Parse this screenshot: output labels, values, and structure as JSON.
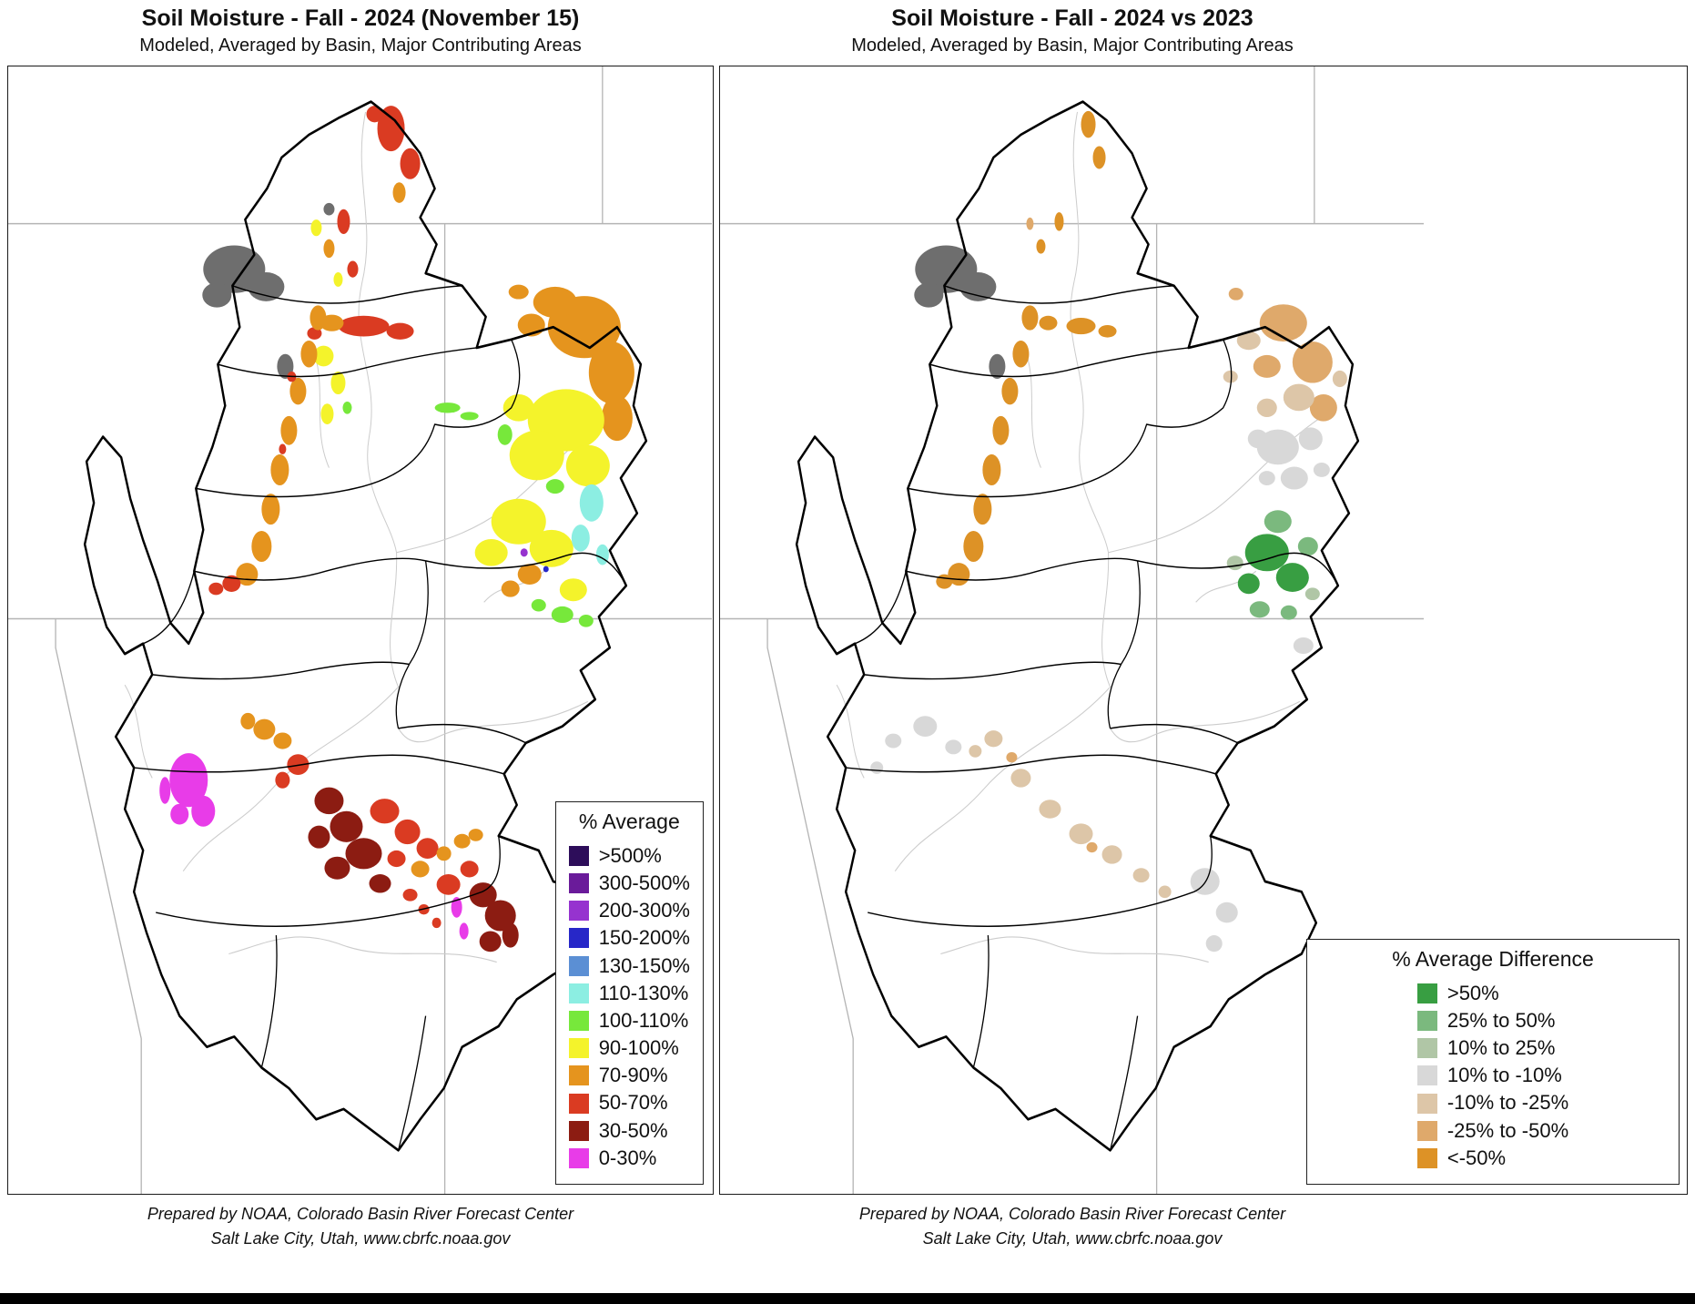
{
  "page": {
    "background_color": "#ffffff",
    "bottom_bar_color": "#000000"
  },
  "map": {
    "boundary_color": "#000000",
    "state_line_color": "#b4b4b4",
    "river_color": "#cccccc",
    "nodata_color": "#6e6e6e"
  },
  "left": {
    "title": "Soil Moisture - Fall - 2024 (November 15)",
    "subtitle": "Modeled, Averaged by Basin, Major Contributing Areas",
    "legend_title": "% Average",
    "legend": [
      {
        "label": ">500%",
        "color": "#2d0d5a"
      },
      {
        "label": "300-500%",
        "color": "#6a1b9a"
      },
      {
        "label": "200-300%",
        "color": "#9633cf"
      },
      {
        "label": "150-200%",
        "color": "#2727c8"
      },
      {
        "label": "130-150%",
        "color": "#5b8fd4"
      },
      {
        "label": "110-130%",
        "color": "#8ceee2"
      },
      {
        "label": "100-110%",
        "color": "#77e83b"
      },
      {
        "label": "90-100%",
        "color": "#f4f32b"
      },
      {
        "label": "70-90%",
        "color": "#e5941e"
      },
      {
        "label": "50-70%",
        "color": "#da3b22"
      },
      {
        "label": "30-50%",
        "color": "#8c1c12"
      },
      {
        "label": "0-30%",
        "color": "#e83ce8"
      }
    ],
    "footer1": "Prepared by NOAA, Colorado Basin River Forecast Center",
    "footer2": "Salt Lake City, Utah, www.cbrfc.noaa.gov"
  },
  "right": {
    "title": "Soil Moisture - Fall - 2024 vs 2023",
    "subtitle": "Modeled, Averaged by Basin, Major Contributing Areas",
    "legend_title": "% Average Difference",
    "legend": [
      {
        "label": ">50%",
        "color": "#389e42"
      },
      {
        "label": "25% to 50%",
        "color": "#7bb97e"
      },
      {
        "label": "10% to 25%",
        "color": "#b0c6a6"
      },
      {
        "label": "10% to -10%",
        "color": "#d8d8d8"
      },
      {
        "label": "-10% to -25%",
        "color": "#ddc6a8"
      },
      {
        "label": "-25% to -50%",
        "color": "#dfa96b"
      },
      {
        "label": "<-50%",
        "color": "#dd9226"
      }
    ],
    "footer1": "Prepared by NOAA, Colorado Basin River Forecast Center",
    "footer2": "Salt Lake City, Utah, www.cbrfc.noaa.gov"
  }
}
